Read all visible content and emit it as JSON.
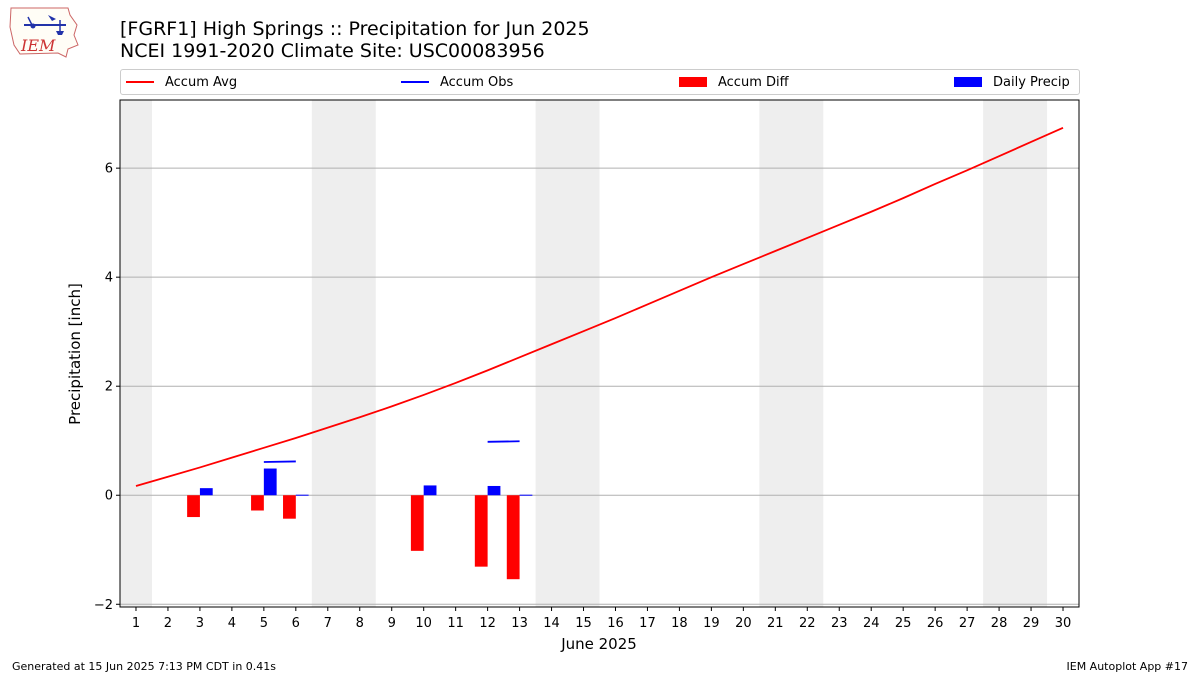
{
  "header": {
    "title_line1": "[FGRF1] High Springs :: Precipitation for Jun 2025",
    "title_line2": "NCEI 1991-2020 Climate Site: USC00083956"
  },
  "logo": {
    "text": "IEM"
  },
  "legend": {
    "items": [
      {
        "label": "Accum Avg",
        "color": "#ff0000",
        "kind": "line"
      },
      {
        "label": "Accum Obs",
        "color": "#0000ff",
        "kind": "line"
      },
      {
        "label": "Accum Diff",
        "color": "#ff0000",
        "kind": "box"
      },
      {
        "label": "Daily Precip",
        "color": "#0000ff",
        "kind": "box"
      }
    ]
  },
  "footer": {
    "left": "Generated at 15 Jun 2025 7:13 PM CDT in 0.41s",
    "right": "IEM Autoplot App #17"
  },
  "chart_data": {
    "type": "bar",
    "xlabel": "June 2025",
    "ylabel": "Precipitation [inch]",
    "xlim": [
      0.5,
      30.5
    ],
    "ylim": [
      -2.05,
      7.25
    ],
    "yticks": [
      -2,
      0,
      2,
      4,
      6
    ],
    "xticks": [
      1,
      2,
      3,
      4,
      5,
      6,
      7,
      8,
      9,
      10,
      11,
      12,
      13,
      14,
      15,
      16,
      17,
      18,
      19,
      20,
      21,
      22,
      23,
      24,
      25,
      26,
      27,
      28,
      29,
      30
    ],
    "grid": "y",
    "weekend_shading": [
      [
        0.5,
        1.5
      ],
      [
        6.5,
        8.5
      ],
      [
        13.5,
        15.5
      ],
      [
        20.5,
        22.5
      ],
      [
        27.5,
        29.5
      ]
    ],
    "colors": {
      "avg": "#ff0000",
      "obs": "#0000ff",
      "diff": "#ff0000",
      "daily": "#0000ff"
    },
    "accum_avg": {
      "days": [
        1,
        2,
        3,
        4,
        5,
        6,
        7,
        8,
        9,
        10,
        11,
        12,
        13,
        14,
        15,
        16,
        17,
        18,
        19,
        20,
        21,
        22,
        23,
        24,
        25,
        26,
        27,
        28,
        29,
        30
      ],
      "values": [
        0.17,
        0.34,
        0.51,
        0.69,
        0.87,
        1.05,
        1.24,
        1.43,
        1.63,
        1.84,
        2.06,
        2.29,
        2.53,
        2.77,
        3.01,
        3.25,
        3.5,
        3.75,
        4.0,
        4.24,
        4.48,
        4.72,
        4.96,
        5.2,
        5.45,
        5.71,
        5.96,
        6.22,
        6.48,
        6.74
      ]
    },
    "accum_obs": [
      {
        "days": [
          5,
          6
        ],
        "values": [
          0.61,
          0.62
        ]
      },
      {
        "days": [
          12,
          13
        ],
        "values": [
          0.98,
          0.99
        ]
      }
    ],
    "accum_diff": {
      "days": [
        3,
        5,
        6,
        10,
        12,
        13
      ],
      "values": [
        -0.4,
        -0.28,
        -0.43,
        -1.02,
        -1.31,
        -1.54
      ]
    },
    "daily_precip": {
      "days": [
        3,
        5,
        6,
        10,
        12,
        13
      ],
      "values": [
        0.13,
        0.49,
        0.01,
        0.18,
        0.17,
        0.01
      ]
    }
  }
}
